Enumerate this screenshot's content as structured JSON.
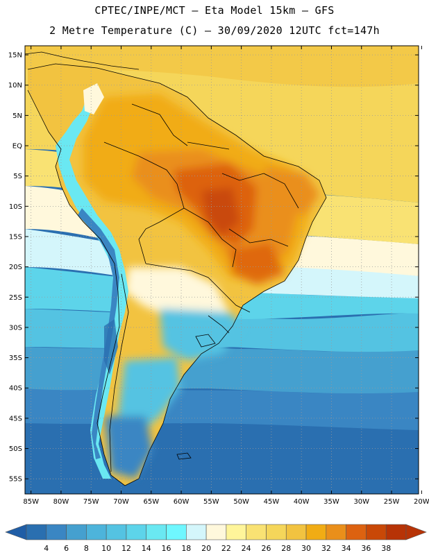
{
  "header": {
    "line1": "CPTEC/INPE/MCT –  Eta Model 15km – GFS",
    "line2": "2 Metre Temperature (C) – 30/09/2020 12UTC fct=147h"
  },
  "map": {
    "lat_ticks": [
      "15N",
      "10N",
      "5N",
      "EQ",
      "5S",
      "10S",
      "15S",
      "20S",
      "25S",
      "30S",
      "35S",
      "40S",
      "45S",
      "50S",
      "55S"
    ],
    "lon_ticks": [
      "85W",
      "80W",
      "75W",
      "70W",
      "65W",
      "60W",
      "55W",
      "50W",
      "45W",
      "40W",
      "35W",
      "30W",
      "25W",
      "20W"
    ],
    "lat_range": [
      -57.5,
      16.5
    ],
    "lon_range": [
      -86,
      -20.5
    ]
  },
  "colorbar": {
    "labels": [
      "4",
      "6",
      "8",
      "10",
      "12",
      "14",
      "16",
      "18",
      "20",
      "22",
      "24",
      "26",
      "28",
      "30",
      "32",
      "34",
      "36",
      "38"
    ],
    "colors": [
      "#2a6fb0",
      "#3a86c3",
      "#45a0cf",
      "#4db4db",
      "#54c3e2",
      "#5dd4ea",
      "#6ae8f2",
      "#6ff7ff",
      "#d4f6fb",
      "#fff8dc",
      "#fff59a",
      "#f9e273",
      "#f5d65a",
      "#f2c340",
      "#f1ac14",
      "#ea8f1a",
      "#dd6210",
      "#c94807",
      "#b73306"
    ],
    "low_arrow_color": "#1f5da6",
    "high_arrow_color": "#b73306"
  }
}
